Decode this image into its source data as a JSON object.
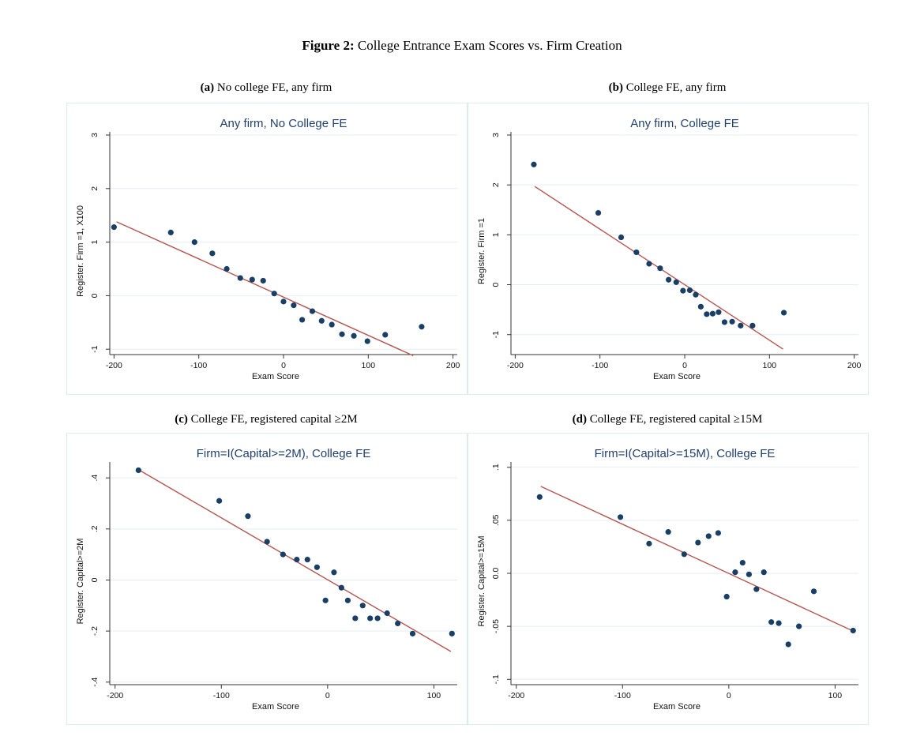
{
  "figure": {
    "label": "Figure 2:",
    "title": "College Entrance Exam Scores vs. Firm Creation"
  },
  "colors": {
    "point": "#1a3f66",
    "fit": "#b85450",
    "grid": "#e4eef2",
    "title": "#1f3f6e"
  },
  "chart_data": [
    {
      "type": "scatter",
      "caption_label": "(a)",
      "caption_text": "No college FE, any firm",
      "title": "Any firm, No College FE",
      "xlabel": "Exam Score",
      "ylabel": "Register. Firm =1, X100",
      "xlim": [
        -205,
        205
      ],
      "ylim": [
        -1.1,
        3.0
      ],
      "xticks": [
        -200,
        -100,
        0,
        100,
        200
      ],
      "xtick_labels": [
        "-200",
        "-100",
        "0",
        "100",
        "200"
      ],
      "yticks": [
        -1,
        0,
        1,
        2,
        3
      ],
      "ytick_labels": [
        "-1",
        "0",
        "1",
        "2",
        "3"
      ],
      "points": [
        [
          -200,
          1.28
        ],
        [
          -133,
          1.18
        ],
        [
          -105,
          1.0
        ],
        [
          -84,
          0.79
        ],
        [
          -67,
          0.5
        ],
        [
          -51,
          0.33
        ],
        [
          -37,
          0.3
        ],
        [
          -24,
          0.28
        ],
        [
          -11,
          0.04
        ],
        [
          0,
          -0.11
        ],
        [
          12,
          -0.18
        ],
        [
          22,
          -0.45
        ],
        [
          34,
          -0.29
        ],
        [
          45,
          -0.47
        ],
        [
          57,
          -0.54
        ],
        [
          69,
          -0.72
        ],
        [
          83,
          -0.75
        ],
        [
          99,
          -0.85
        ],
        [
          120,
          -0.73
        ],
        [
          163,
          -0.58
        ]
      ],
      "fit": [
        [
          -197,
          1.38
        ],
        [
          153,
          -1.12
        ]
      ]
    },
    {
      "type": "scatter",
      "caption_label": "(b)",
      "caption_text": "College FE, any firm",
      "title": "Any firm, College FE",
      "xlabel": "Exam Score",
      "ylabel": "Register. Firm =1",
      "xlim": [
        -205,
        205
      ],
      "ylim": [
        -1.4,
        3.0
      ],
      "xticks": [
        -200,
        -100,
        0,
        100,
        200
      ],
      "xtick_labels": [
        "-200",
        "-100",
        "0",
        "100",
        "200"
      ],
      "yticks": [
        -1,
        0,
        1,
        2,
        3
      ],
      "ytick_labels": [
        "-1",
        "0",
        "1",
        "2",
        "3"
      ],
      "points": [
        [
          -178,
          2.41
        ],
        [
          -102,
          1.44
        ],
        [
          -75,
          0.95
        ],
        [
          -57,
          0.65
        ],
        [
          -42,
          0.42
        ],
        [
          -29,
          0.33
        ],
        [
          -19,
          0.1
        ],
        [
          -10,
          0.05
        ],
        [
          -2,
          -0.12
        ],
        [
          6,
          -0.11
        ],
        [
          13,
          -0.2
        ],
        [
          19,
          -0.44
        ],
        [
          26,
          -0.59
        ],
        [
          33,
          -0.58
        ],
        [
          40,
          -0.55
        ],
        [
          47,
          -0.75
        ],
        [
          56,
          -0.74
        ],
        [
          66,
          -0.82
        ],
        [
          80,
          -0.82
        ],
        [
          117,
          -0.56
        ]
      ],
      "fit": [
        [
          -177,
          1.97
        ],
        [
          116,
          -1.29
        ]
      ]
    },
    {
      "type": "scatter",
      "caption_label": "(c)",
      "caption_text": "College FE, registered capital ≥2M",
      "title": "Firm=I(Capital>=2M), College FE",
      "xlabel": "Exam Score",
      "ylabel": "Register. Capital>=2M",
      "xlim": [
        -205,
        122
      ],
      "ylim": [
        -0.41,
        0.45
      ],
      "xticks": [
        -200,
        -100,
        0,
        100
      ],
      "xtick_labels": [
        "-200",
        "-100",
        "0",
        "100"
      ],
      "yticks": [
        -0.4,
        -0.2,
        0,
        0.2,
        0.4
      ],
      "ytick_labels": [
        "-.4",
        "-.2",
        "0",
        ".2",
        ".4"
      ],
      "points": [
        [
          -178,
          0.43
        ],
        [
          -102,
          0.31
        ],
        [
          -75,
          0.25
        ],
        [
          -57,
          0.15
        ],
        [
          -42,
          0.1
        ],
        [
          -29,
          0.08
        ],
        [
          -19,
          0.08
        ],
        [
          -10,
          0.05
        ],
        [
          -2,
          -0.08
        ],
        [
          6,
          0.03
        ],
        [
          13,
          -0.03
        ],
        [
          19,
          -0.08
        ],
        [
          26,
          -0.15
        ],
        [
          33,
          -0.1
        ],
        [
          40,
          -0.15
        ],
        [
          47,
          -0.15
        ],
        [
          56,
          -0.13
        ],
        [
          66,
          -0.17
        ],
        [
          80,
          -0.21
        ],
        [
          117,
          -0.21
        ]
      ],
      "fit": [
        [
          -177,
          0.43
        ],
        [
          116,
          -0.28
        ]
      ]
    },
    {
      "type": "scatter",
      "caption_label": "(d)",
      "caption_text": "College FE, registered capital ≥15M",
      "title": "Firm=I(Capital>=15M), College FE",
      "xlabel": "Exam Score",
      "ylabel": "Register. Capital>=15M",
      "xlim": [
        -205,
        122
      ],
      "ylim": [
        -0.105,
        0.102
      ],
      "xticks": [
        -200,
        -100,
        0,
        100
      ],
      "xtick_labels": [
        "-200",
        "-100",
        "0",
        "100"
      ],
      "yticks": [
        -0.1,
        -0.05,
        0,
        0.05,
        0.1
      ],
      "ytick_labels": [
        "-.1",
        "-.05",
        "0.0",
        ".05",
        ".1"
      ],
      "points": [
        [
          -178,
          0.072
        ],
        [
          -102,
          0.053
        ],
        [
          -75,
          0.028
        ],
        [
          -57,
          0.039
        ],
        [
          -42,
          0.018
        ],
        [
          -29,
          0.029
        ],
        [
          -19,
          0.035
        ],
        [
          -10,
          0.038
        ],
        [
          -2,
          -0.022
        ],
        [
          6,
          0.001
        ],
        [
          13,
          0.01
        ],
        [
          19,
          -0.001
        ],
        [
          26,
          -0.015
        ],
        [
          33,
          0.001
        ],
        [
          40,
          -0.046
        ],
        [
          47,
          -0.047
        ],
        [
          56,
          -0.067
        ],
        [
          66,
          -0.05
        ],
        [
          80,
          -0.017
        ],
        [
          117,
          -0.054
        ]
      ],
      "fit": [
        [
          -177,
          0.082
        ],
        [
          116,
          -0.054
        ]
      ]
    }
  ]
}
